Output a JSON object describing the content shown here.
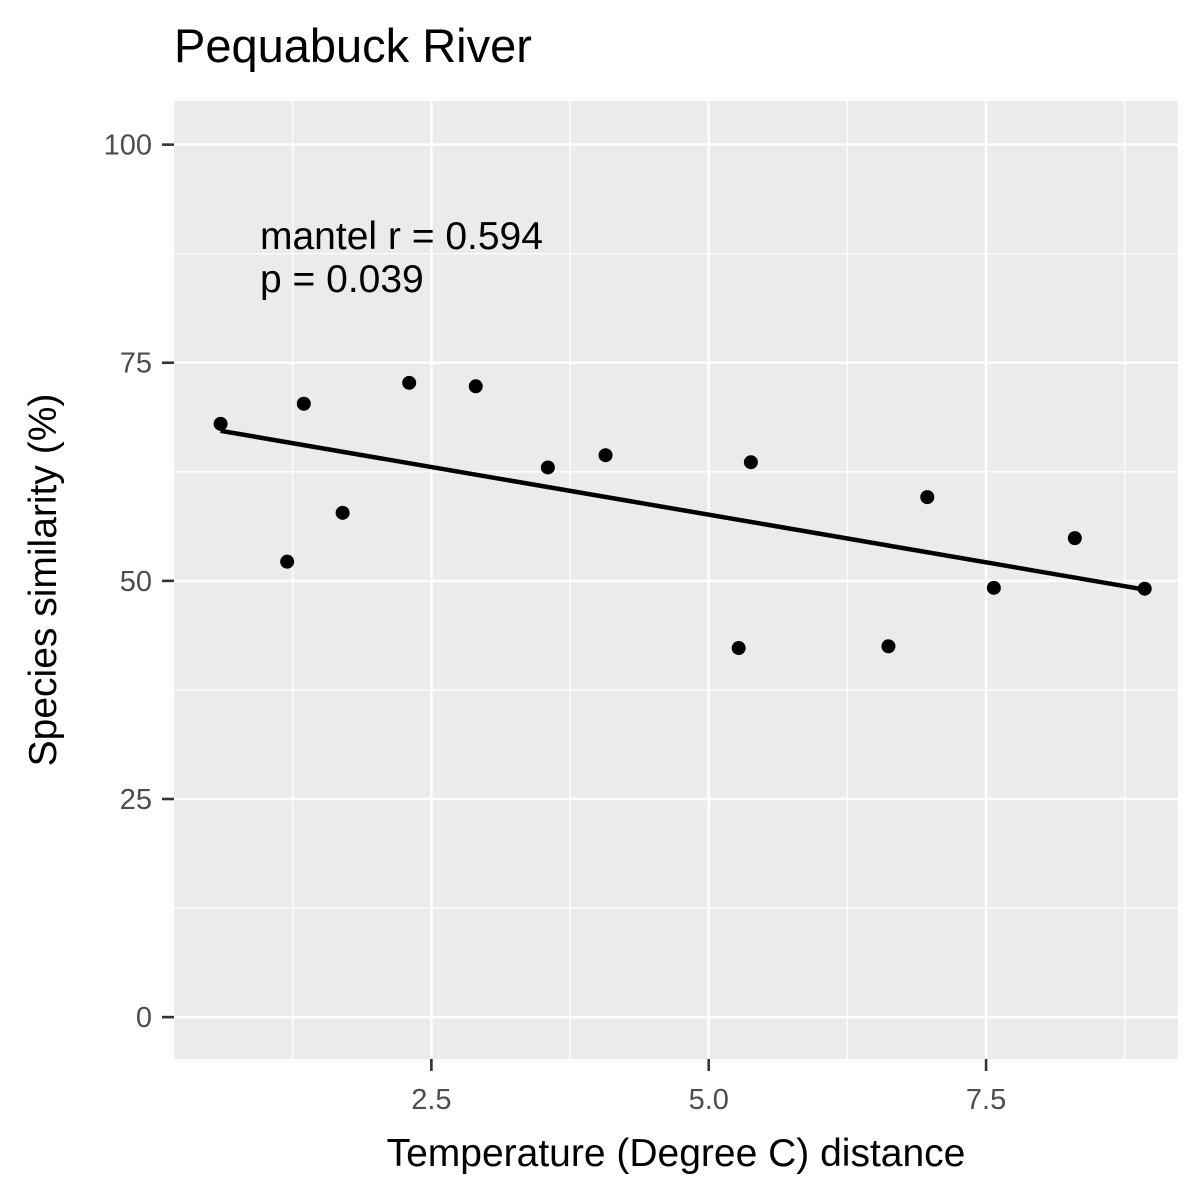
{
  "chart_data": {
    "type": "scatter",
    "title": "Pequabuck River",
    "xlabel": "Temperature (Degree C) distance",
    "ylabel": "Species similarity (%)",
    "xlim": [
      0.18,
      9.23
    ],
    "ylim": [
      -4.8,
      105
    ],
    "x_ticks": [
      2.5,
      5.0,
      7.5
    ],
    "x_tick_labels": [
      "2.5",
      "5.0",
      "7.5"
    ],
    "y_ticks": [
      0,
      25,
      50,
      75,
      100
    ],
    "y_tick_labels": [
      "0",
      "25",
      "50",
      "75",
      "100"
    ],
    "grid": true,
    "annotations": [
      "mantel r = 0.594",
      "p = 0.039"
    ],
    "points": {
      "x": [
        0.6,
        1.2,
        1.35,
        1.7,
        2.3,
        2.9,
        3.55,
        4.07,
        5.27,
        5.38,
        6.62,
        6.97,
        7.57,
        8.3,
        8.93
      ],
      "y": [
        68,
        52.2,
        70.3,
        57.8,
        72.7,
        72.3,
        63,
        64.4,
        42.3,
        63.6,
        42.5,
        59.6,
        49.2,
        54.9,
        49.1
      ]
    },
    "fit_line": {
      "x": [
        0.6,
        8.93
      ],
      "y": [
        67.2,
        49.0
      ]
    },
    "colors": {
      "panel_background": "#ebebeb",
      "grid": "#ffffff",
      "points": "#000000",
      "line": "#000000"
    }
  }
}
